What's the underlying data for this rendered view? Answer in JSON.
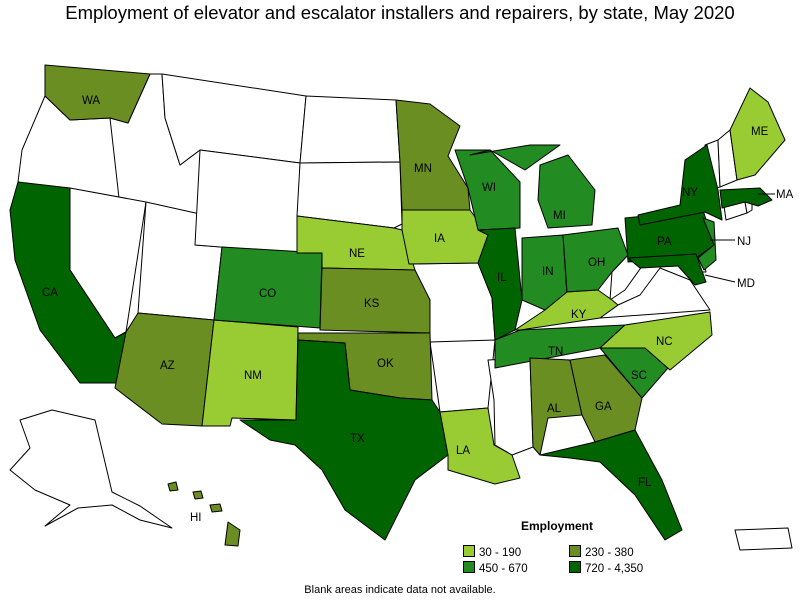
{
  "title": "Employment of elevator and escalator installers and repairers, by state, May 2020",
  "legend": {
    "title": "Employment",
    "items": [
      {
        "label": "30 - 190",
        "color": "#99cc33"
      },
      {
        "label": "230 - 380",
        "color": "#6b8e23"
      },
      {
        "label": "450 - 670",
        "color": "#228b22"
      },
      {
        "label": "720 - 4,350",
        "color": "#006400"
      }
    ]
  },
  "note": "Blank areas indicate data not available.",
  "colors": {
    "c1": "#99cc33",
    "c2": "#6b8e23",
    "c3": "#228b22",
    "c4": "#006400",
    "blank": "#ffffff"
  },
  "state_labels": {
    "WA": "WA",
    "CA": "CA",
    "AZ": "AZ",
    "NM": "NM",
    "CO": "CO",
    "NE": "NE",
    "KS": "KS",
    "OK": "OK",
    "TX": "TX",
    "MN": "MN",
    "IA": "IA",
    "WI": "WI",
    "IL": "IL",
    "MI": "MI",
    "IN": "IN",
    "OH": "OH",
    "KY": "KY",
    "TN": "TN",
    "AL": "AL",
    "GA": "GA",
    "SC": "SC",
    "NC": "NC",
    "FL": "FL",
    "LA": "LA",
    "PA": "PA",
    "NY": "NY",
    "ME": "ME",
    "MA": "MA",
    "NJ": "NJ",
    "MD": "MD",
    "HI": "HI"
  }
}
